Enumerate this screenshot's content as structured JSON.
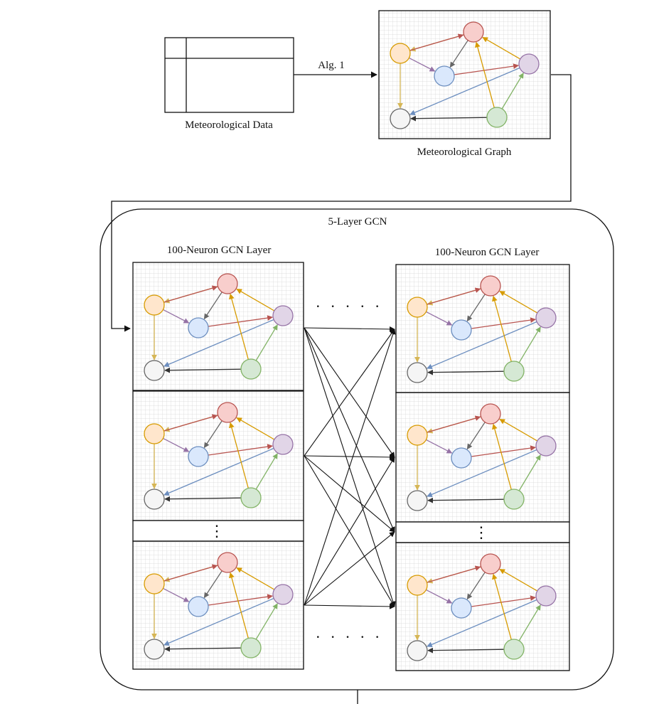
{
  "labels": {
    "meteorological_data": "Meteorological Data",
    "algorithm": "Alg. 1",
    "meteorological_graph": "Meteorological Graph",
    "gcn_block": "5-Layer GCN",
    "left_layer": "100-Neuron GCN Layer",
    "right_layer": "100-Neuron GCN Layer",
    "ellipsis_horizontal": "· · · · ·",
    "ellipsis_vertical": "⋮"
  },
  "graph_nodes": [
    {
      "id": "red",
      "fill": "#f8cecc",
      "stroke": "#b85450"
    },
    {
      "id": "orange",
      "fill": "#ffe6cc",
      "stroke": "#d79b00"
    },
    {
      "id": "blue",
      "fill": "#dae8fc",
      "stroke": "#6c8ebf"
    },
    {
      "id": "purple",
      "fill": "#e1d5e7",
      "stroke": "#9673a6"
    },
    {
      "id": "gray",
      "fill": "#f5f5f5",
      "stroke": "#666666"
    },
    {
      "id": "green",
      "fill": "#d5e8d4",
      "stroke": "#82b366"
    }
  ],
  "graph_edges": [
    {
      "from": "red",
      "to": "orange",
      "color": "#d6b656"
    },
    {
      "from": "orange",
      "to": "red",
      "color": "#b85450"
    },
    {
      "from": "orange",
      "to": "blue",
      "color": "#9673a6"
    },
    {
      "from": "red",
      "to": "blue",
      "color": "#666666"
    },
    {
      "from": "blue",
      "to": "purple",
      "color": "#b85450"
    },
    {
      "from": "purple",
      "to": "red",
      "color": "#d79b00"
    },
    {
      "from": "orange",
      "to": "gray",
      "color": "#d6b656"
    },
    {
      "from": "purple",
      "to": "gray",
      "color": "#6c8ebf"
    },
    {
      "from": "green",
      "to": "red",
      "color": "#d79b00"
    },
    {
      "from": "green",
      "to": "purple",
      "color": "#82b366"
    },
    {
      "from": "green",
      "to": "gray",
      "color": "#333333"
    }
  ],
  "connections": {
    "color": "#111111"
  }
}
